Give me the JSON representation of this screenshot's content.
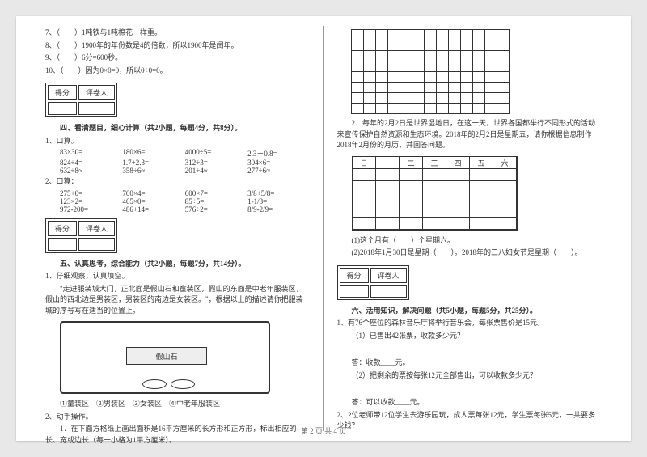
{
  "q7": "7、（　　）1吨铁与1吨棉花一样重。",
  "q8": "8、（　　）1900年的年份数是4的倍数，所以1900年是闰年。",
  "q9": "9、（　　）6分=600秒。",
  "q10": "10、（　　）因为0×0=0，所以0÷0=0。",
  "score_h1": "得分",
  "score_h2": "评卷人",
  "sec4_title": "四、看清题目，细心计算（共2小题，每题4分，共8分）。",
  "s4_1": "1、口算。",
  "c1": [
    "83×30=",
    "180×6=",
    "4000÷5=",
    "2.3－0.8="
  ],
  "c2": [
    "824÷4=",
    "1.7+2.3=",
    "312÷3=",
    "304×6="
  ],
  "c3": [
    "632÷8≈",
    "358÷6≈",
    "201÷4≈",
    "277÷6≈"
  ],
  "s4_2": "2、口算：",
  "c4": [
    "275+0=",
    "700×4=",
    "600×7=",
    "3/8+5/8="
  ],
  "c5": [
    "123×2=",
    "465×0=",
    "85÷5=",
    "1-1/3="
  ],
  "c6": [
    "972-200=",
    "486+14=",
    "576÷2=",
    "8/9-2/9="
  ],
  "sec5_title": "五、认真思考，综合能力（共2小题，每题7分，共14分）。",
  "s5_1": "1、仔细观察，认真填空。",
  "s5_1_text": "　　\"走进服装城大门，正北面是假山石和童装区，假山的东面是中老年服装区，假山的西北边是男装区，男装区的南边是女装区。\"，根据以上的描述请你把服装城的序号写在适当的位置上。",
  "rock_label": "假山石",
  "legend": "①童装区　②男装区　③女装区　④中老年服装区",
  "s5_2": "2、动手操作。",
  "s5_2_1": "　　1．在下面方格纸上画出面积是16平方厘米的长方形和正方形，标出相应的长、宽或边长（每一小格为1平方厘米）。",
  "s5_2_2_text": "　　2．每年的2月2日是世界湿地日，在这一天，世界各国都举行不同形式的活动来宣传保护自然资源和生态环境。2018年的2月2日是星期五，请你根据信息制作2018年2月份的月历，并回答问题。",
  "cal_headers": [
    "日",
    "一",
    "二",
    "三",
    "四",
    "五",
    "六"
  ],
  "q_cal1": "(1)这个月有（　　）个星期六。",
  "q_cal2": "(2)2018年1月30日是星期（　　）。2018年的三八妇女节是星期（　　）。",
  "sec6_title": "六、活用知识，解决问题（共5小题，每题5分，共25分）。",
  "s6_1": "1、有76个座位的森林音乐厅将举行音乐会，每张票售价是15元。",
  "s6_1_1": "（1）已售出42张票，收款多少元？",
  "ans1": "答：收款____元。",
  "s6_1_2": "（2）把剩余的票按每张12元全部售出，可以收款多少元？",
  "ans2": "答：可以收款____元。",
  "s6_2": "2、2位老师带12位学生去游乐园玩，成人票每张12元，学生票每张5元，一共要多少钱？",
  "footer": "第 2 页 共 4 页",
  "grid": {
    "rows": 8,
    "cols": 13
  },
  "cal": {
    "rows": 5,
    "cols": 7
  }
}
